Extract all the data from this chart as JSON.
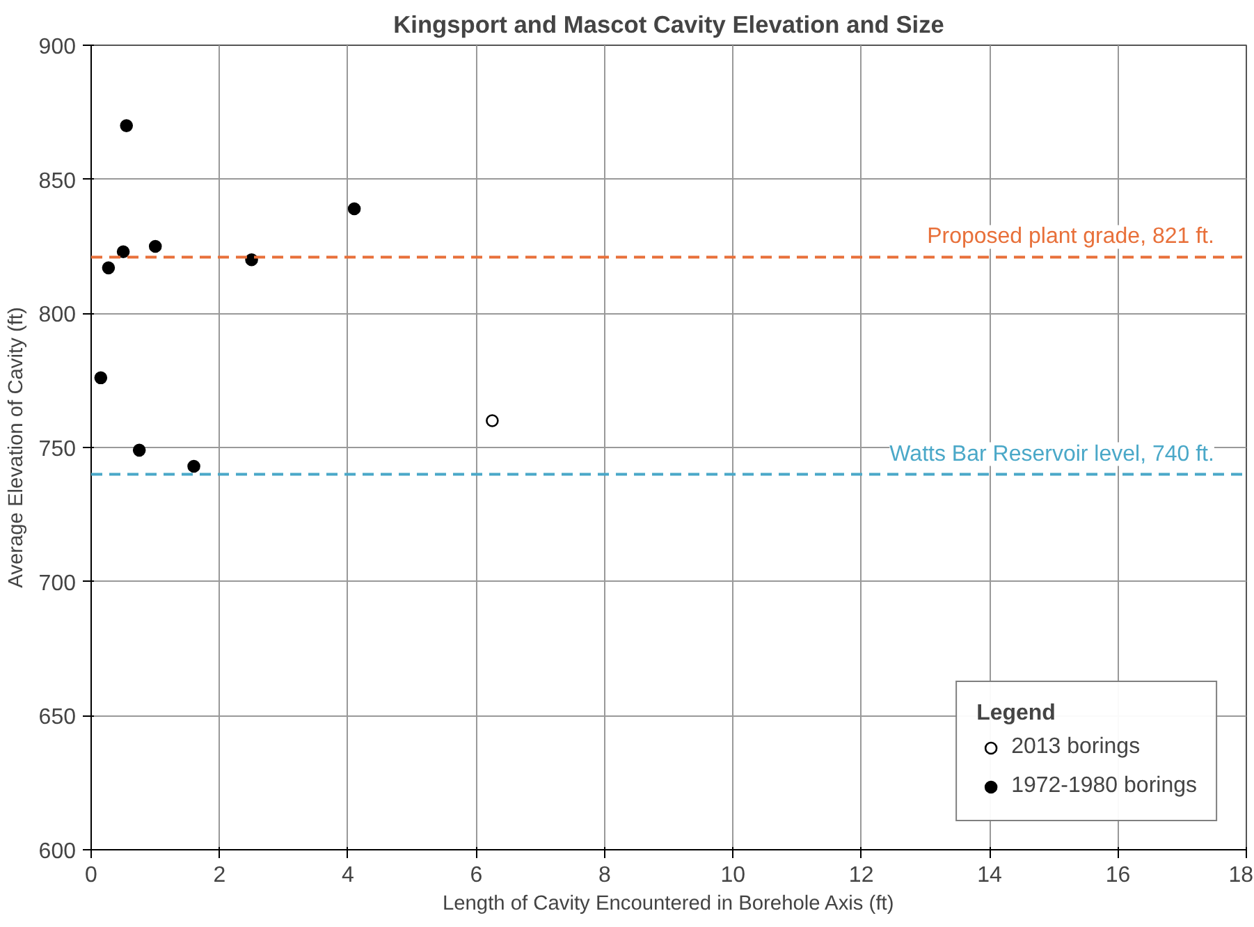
{
  "chart_data": {
    "type": "scatter",
    "title": "Kingsport and Mascot Cavity Elevation and Size",
    "xlabel": "Length of Cavity Encountered in Borehole Axis (ft)",
    "ylabel": "Average Elevation of Cavity (ft)",
    "legend_title": "Legend",
    "xlim": [
      0,
      18
    ],
    "xticks": [
      0,
      2,
      4,
      6,
      8,
      10,
      12,
      14,
      16,
      18
    ],
    "ylim": [
      600,
      900
    ],
    "yticks": [
      600,
      650,
      700,
      750,
      800,
      850,
      900
    ],
    "grid": true,
    "legend": "bottom right",
    "marker": "circle",
    "series": [
      {
        "name": "2013 borings",
        "color": "#ffffff",
        "x": [
          6.25
        ],
        "values": [
          760
        ]
      },
      {
        "name": "1972-1980 borings",
        "color": "#000000",
        "x": [
          0.15,
          0.27,
          0.5,
          0.55,
          0.75,
          1.0,
          1.6,
          2.5,
          4.1
        ],
        "values": [
          776,
          817,
          823,
          870,
          749,
          825,
          743,
          820,
          839
        ]
      }
    ],
    "ref_lines": [
      {
        "axis": "y",
        "value": 821,
        "label": "Proposed plant grade, 821 ft.",
        "color": "#e8703a",
        "line_style": "dashed"
      },
      {
        "axis": "y",
        "value": 740,
        "label": "Watts Bar Reservoir level, 740 ft.",
        "color": "#4aa8c8",
        "line_style": "dashed"
      }
    ]
  }
}
